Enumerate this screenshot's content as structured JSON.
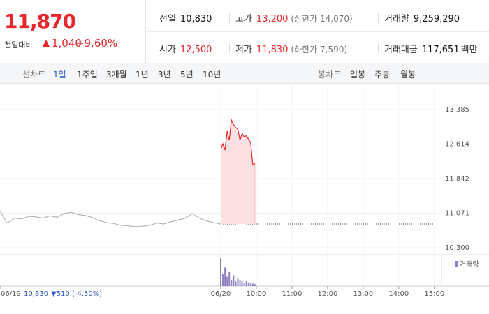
{
  "header": {
    "price": "11,870",
    "change_label": "전일대비",
    "change": "1,040",
    "change_rate": "+9.60%",
    "stats": [
      [
        {
          "label": "전일",
          "value": "10,830"
        },
        {
          "label": "고가",
          "value": "13,200",
          "note": "(상한가 14,070)"
        },
        {
          "label": "거래량",
          "value": "9,259,290"
        }
      ],
      [
        {
          "label": "시가",
          "value": "12,500"
        },
        {
          "label": "저가",
          "value": "11,830",
          "note": "(하한가 7,590)"
        },
        {
          "label": "거래대금",
          "value": "117,651",
          "unit": "백만"
        }
      ]
    ]
  },
  "tabs": {
    "line_label": "선차트",
    "line": [
      "1일",
      "1주일",
      "3개월",
      "1년",
      "3년",
      "5년",
      "10년"
    ],
    "candle_label": "봉차트",
    "candle": [
      "일봉",
      "주봉",
      "월봉"
    ]
  },
  "chart_data": {
    "type": "line",
    "xlim": [
      0,
      12.4
    ],
    "ylim": [
      10300,
      13385
    ],
    "yticks": [
      {
        "value": 10300,
        "label": "10,300"
      },
      {
        "value": 11071,
        "label": "11,071"
      },
      {
        "value": 11842,
        "label": "11,842"
      },
      {
        "value": 12614,
        "label": "12,614"
      },
      {
        "value": 13385,
        "label": "13,385"
      }
    ],
    "xticks": [
      {
        "value": 0,
        "label": "06/19"
      },
      {
        "value": 6.2,
        "label": "06/20"
      },
      {
        "value": 7.2,
        "label": "10:00"
      },
      {
        "value": 8.2,
        "label": "11:00"
      },
      {
        "value": 9.2,
        "label": "12:00"
      },
      {
        "value": 10.2,
        "label": "13:00"
      },
      {
        "value": 11.2,
        "label": "14:00"
      },
      {
        "value": 12.2,
        "label": "15:00"
      }
    ],
    "reference": 10830,
    "series": [
      {
        "color": "#b4b4b4",
        "x": [
          0,
          0.2,
          0.4,
          0.6,
          0.8,
          1,
          1.2,
          1.4,
          1.6,
          1.8,
          2,
          2.2,
          2.4,
          2.6,
          2.8,
          3,
          3.2,
          3.4,
          3.6,
          3.8,
          4,
          4.2,
          4.4,
          4.6,
          4.8,
          5,
          5.2,
          5.4,
          5.6,
          5.8,
          6,
          6.2
        ],
        "values": [
          11120,
          10850,
          10960,
          10940,
          11000,
          10990,
          10960,
          11010,
          10980,
          11060,
          11090,
          11040,
          11020,
          10970,
          10900,
          10860,
          10840,
          10800,
          10790,
          10770,
          10780,
          10800,
          10850,
          10830,
          10880,
          10920,
          10960,
          11060,
          10960,
          10900,
          10860,
          10830
        ]
      },
      {
        "color": "#e8272c",
        "fill": "#fbe1e3",
        "x": [
          6.2,
          6.26,
          6.32,
          6.38,
          6.44,
          6.5,
          6.56,
          6.62,
          6.68,
          6.74,
          6.8,
          6.86,
          6.92,
          6.98,
          7.04,
          7.1,
          7.16
        ],
        "values": [
          12500,
          12620,
          12480,
          12900,
          12700,
          13150,
          13050,
          12980,
          12950,
          12700,
          12850,
          12780,
          12800,
          12720,
          12650,
          12150,
          12180
        ]
      }
    ],
    "volume": {
      "name": "거래량",
      "color": "#8f7fc4",
      "x": [
        6.2,
        6.26,
        6.32,
        6.38,
        6.44,
        6.5,
        6.56,
        6.62,
        6.68,
        6.74,
        6.8,
        6.86,
        6.92,
        6.98,
        7.04,
        7.1,
        7.16
      ],
      "values": [
        90,
        40,
        60,
        30,
        45,
        20,
        35,
        15,
        25,
        20,
        15,
        10,
        18,
        12,
        10,
        8,
        6
      ]
    },
    "readout": {
      "date": "06/19",
      "price": "10,830",
      "change": "▼510",
      "rate": "(-4.50%)"
    }
  }
}
